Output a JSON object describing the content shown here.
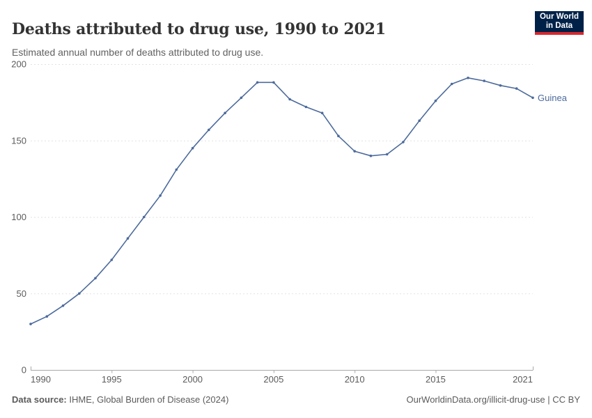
{
  "header": {
    "title": "Deaths attributed to drug use, 1990 to 2021",
    "subtitle": "Estimated annual number of deaths attributed to drug use."
  },
  "logo": {
    "line1": "Our World",
    "line2": "in Data",
    "bg_color": "#002147",
    "bar_color": "#D7282F"
  },
  "chart_data": {
    "type": "line",
    "title": "Deaths attributed to drug use, 1990 to 2021",
    "xlabel": "",
    "ylabel": "",
    "xlim": [
      1990,
      2021
    ],
    "ylim": [
      0,
      200
    ],
    "x_ticks": [
      1990,
      1995,
      2000,
      2005,
      2010,
      2015,
      2021
    ],
    "y_ticks": [
      0,
      50,
      100,
      150,
      200
    ],
    "grid": "horizontal-dashed",
    "legend": "direct-label-right",
    "x": [
      1990,
      1991,
      1992,
      1993,
      1994,
      1995,
      1996,
      1997,
      1998,
      1999,
      2000,
      2001,
      2002,
      2003,
      2004,
      2005,
      2006,
      2007,
      2008,
      2009,
      2010,
      2011,
      2012,
      2013,
      2014,
      2015,
      2016,
      2017,
      2018,
      2019,
      2020,
      2021
    ],
    "series": [
      {
        "name": "Guinea",
        "color": "#4C6A9C",
        "values": [
          30,
          35,
          42,
          50,
          60,
          72,
          86,
          100,
          114,
          131,
          145,
          157,
          168,
          178,
          188,
          188,
          177,
          172,
          168,
          153,
          143,
          140,
          141,
          149,
          163,
          176,
          187,
          191,
          189,
          186,
          184,
          178
        ]
      }
    ],
    "style": {
      "gridline_color": "#e2e2e2",
      "axis_color": "#a9a9a9",
      "tick_label_color": "#5b5b5b"
    }
  },
  "footer": {
    "source_label": "Data source:",
    "source_text": " IHME, Global Burden of Disease (2024)",
    "link_text": "OurWorldinData.org/illicit-drug-use | CC BY"
  }
}
